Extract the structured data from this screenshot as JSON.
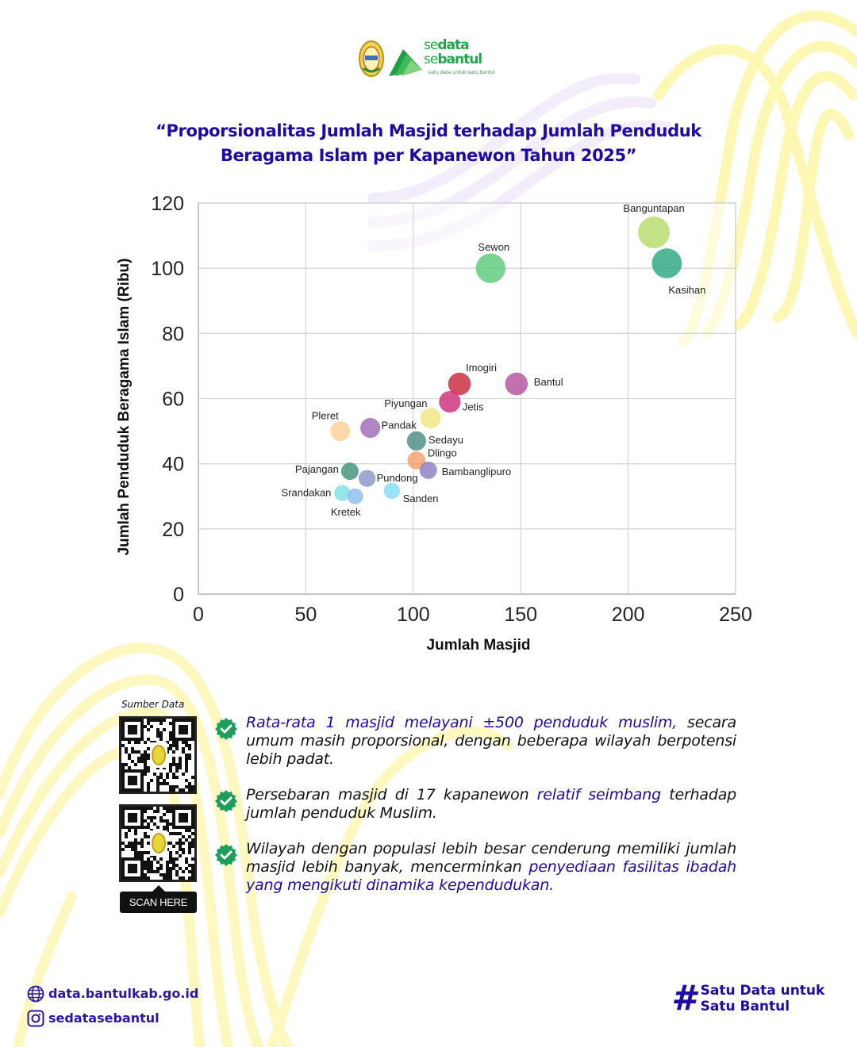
{
  "header": {
    "brand_line1_light": "se",
    "brand_line1_bold": "data",
    "brand_line2_light": "se",
    "brand_line2_bold": "bantul",
    "tagline": "satu data untuk satu Bantul",
    "title_line1": "“Proporsionalitas Jumlah Masjid terhadap Jumlah Penduduk",
    "title_line2": "Beragama Islam per Kapanewon Tahun 2025”"
  },
  "chart_data": {
    "type": "scatter",
    "title": "Proporsionalitas Jumlah Masjid terhadap Jumlah Penduduk Beragama Islam per Kapanewon Tahun 2025",
    "xlabel": "Jumlah Masjid",
    "ylabel": "Jumlah Penduduk Beragama Islam (Ribu)",
    "xlim": [
      0,
      250
    ],
    "ylim": [
      0,
      120
    ],
    "xticks": [
      0,
      50,
      100,
      150,
      200,
      250
    ],
    "yticks": [
      0,
      20,
      40,
      60,
      80,
      100,
      120
    ],
    "grid": true,
    "points": [
      {
        "label": "Banguntapan",
        "x": 212,
        "y": 111,
        "color": "#b7dc6a",
        "label_pos": "above"
      },
      {
        "label": "Kasihan",
        "x": 218,
        "y": 101.5,
        "color": "#2ca682",
        "label_pos": "below-right"
      },
      {
        "label": "Sewon",
        "x": 136,
        "y": 100,
        "color": "#5cc97a",
        "label_pos": "above"
      },
      {
        "label": "Imogiri",
        "x": 121.5,
        "y": 64.5,
        "color": "#c8283f",
        "label_pos": "above-right"
      },
      {
        "label": "Bantul",
        "x": 148,
        "y": 64.5,
        "color": "#b6509e",
        "label_pos": "right"
      },
      {
        "label": "Jetis",
        "x": 117,
        "y": 59,
        "color": "#d02d7a",
        "label_pos": "below-right"
      },
      {
        "label": "Piyungan",
        "x": 108,
        "y": 54,
        "color": "#eee784",
        "label_pos": "above-left"
      },
      {
        "label": "Pleret",
        "x": 66,
        "y": 50,
        "color": "#fdcf96",
        "label_pos": "above-left"
      },
      {
        "label": "Pandak",
        "x": 80,
        "y": 51,
        "color": "#9c6bb6",
        "label_pos": "right"
      },
      {
        "label": "Sedayu",
        "x": 101.5,
        "y": 47,
        "color": "#4f8c86",
        "label_pos": "right"
      },
      {
        "label": "Dlingo",
        "x": 101.5,
        "y": 41,
        "color": "#f1a06b",
        "label_pos": "above-right"
      },
      {
        "label": "Bambanglipuro",
        "x": 107,
        "y": 38,
        "color": "#8e7cc4",
        "label_pos": "right"
      },
      {
        "label": "Pajangan",
        "x": 70.5,
        "y": 37.7,
        "color": "#3d927a",
        "label_pos": "left"
      },
      {
        "label": "Pundong",
        "x": 78.5,
        "y": 35.5,
        "color": "#8a97c8",
        "label_pos": "right"
      },
      {
        "label": "Sanden",
        "x": 90,
        "y": 31.7,
        "color": "#86dcf5",
        "label_pos": "below-right"
      },
      {
        "label": "Srandakan",
        "x": 67,
        "y": 31,
        "color": "#7ee0e4",
        "label_pos": "left"
      },
      {
        "label": "Kretek",
        "x": 73,
        "y": 30,
        "color": "#8cc0ea",
        "label_pos": "below"
      }
    ]
  },
  "source": {
    "label": "Sumber Data",
    "scan_label": "SCAN HERE"
  },
  "insights": [
    {
      "parts": [
        {
          "text": "Rata-rata 1 masjid melayani ±500 penduduk muslim,",
          "highlight": true
        },
        {
          "text": " secara umum masih proporsional, dengan beberapa wilayah berpotensi lebih padat.",
          "highlight": false
        }
      ]
    },
    {
      "parts": [
        {
          "text": "Persebaran masjid di 17 kapanewon ",
          "highlight": false
        },
        {
          "text": "relatif seimbang",
          "highlight": true
        },
        {
          "text": " terhadap jumlah penduduk Muslim.",
          "highlight": false
        }
      ]
    },
    {
      "parts": [
        {
          "text": "Wilayah dengan populasi lebih besar cenderung memiliki jumlah masjid lebih banyak, mencerminkan ",
          "highlight": false
        },
        {
          "text": "penyediaan fasilitas ibadah yang mengikuti dinamika kependudukan.",
          "highlight": true
        }
      ]
    }
  ],
  "footer": {
    "website": "data.bantulkab.go.id",
    "instagram": "sedatasebantul",
    "hashtag_symbol": "#",
    "hashtag_line1": "Satu Data untuk",
    "hashtag_line2": "Satu Bantul"
  },
  "colors": {
    "primary": "#1e0aa6",
    "brand_green": "#1fa84a",
    "check_green": "#1e9e5a",
    "decor_yellow": "#fbf7a8",
    "decor_lavender": "#efe8fa"
  }
}
